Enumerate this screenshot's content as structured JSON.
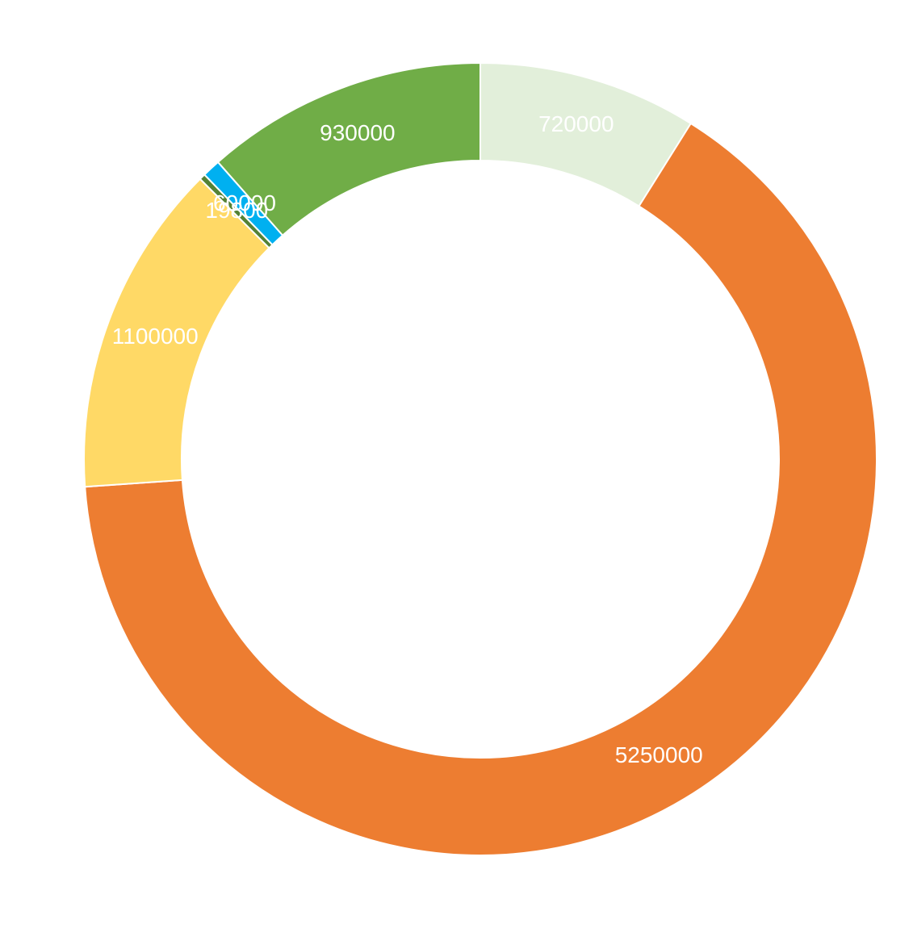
{
  "chart_data": {
    "type": "donut",
    "values": [
      720000,
      5250000,
      1100000,
      19800,
      60000,
      930000
    ],
    "colors": [
      "#e2efda",
      "#ed7d31",
      "#ffd966",
      "#548235",
      "#00b0f0",
      "#70ad47"
    ],
    "label_color": "#ffffff"
  }
}
